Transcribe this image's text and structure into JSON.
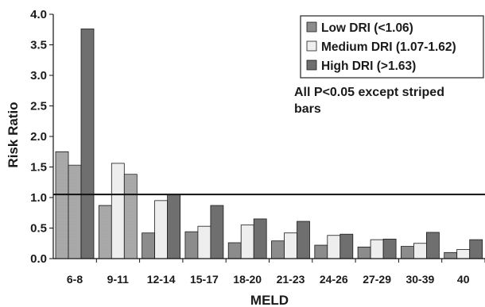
{
  "chart_data": {
    "type": "bar",
    "xlabel": "MELD",
    "ylabel": "Risk Ratio",
    "ylim": [
      0,
      4.0
    ],
    "yticks": [
      "0.0",
      "0.5",
      "1.0",
      "1.5",
      "2.0",
      "2.5",
      "3.0",
      "3.5",
      "4.0"
    ],
    "categories": [
      "6-8",
      "9-11",
      "12-14",
      "15-17",
      "18-20",
      "21-23",
      "24-26",
      "27-29",
      "30-39",
      "40"
    ],
    "reference_line": 1.05,
    "series": [
      {
        "name": "Low DRI (<1.06)",
        "color": "#8c8c8c",
        "values": [
          1.75,
          0.87,
          0.42,
          0.44,
          0.26,
          0.29,
          0.22,
          0.19,
          0.2,
          0.1
        ]
      },
      {
        "name": "Medium DRI (1.07-1.62)",
        "color": "#eeeeee",
        "values": [
          1.53,
          1.56,
          0.95,
          0.53,
          0.55,
          0.42,
          0.38,
          0.31,
          0.25,
          0.15
        ]
      },
      {
        "name": "High DRI (>1.63)",
        "color": "#6f6f6f",
        "values": [
          3.76,
          1.38,
          1.05,
          0.87,
          0.65,
          0.61,
          0.4,
          0.32,
          0.43,
          0.31
        ]
      }
    ],
    "striped": [
      [
        0,
        0
      ],
      [
        0,
        1
      ],
      [
        1,
        0
      ],
      [
        2,
        1
      ]
    ],
    "annotation": "All P<0.05 except striped bars",
    "legend_position": "top-right",
    "grid": false
  }
}
